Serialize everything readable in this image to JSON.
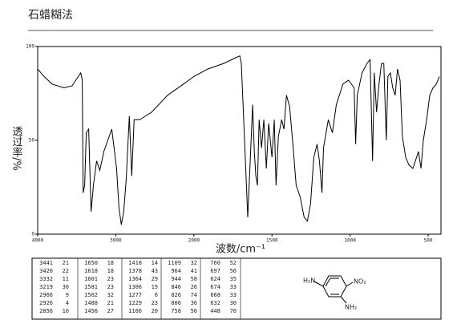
{
  "chart_data": {
    "type": "line",
    "title": "石蜡糊法",
    "x_label": "波数/cm⁻¹",
    "y_label": "透过率/%",
    "xlim": [
      4000,
      418
    ],
    "xticks": [
      4000,
      3000,
      2000,
      1500,
      1000,
      500
    ],
    "ylim": [
      0,
      100
    ],
    "yticks": [
      0,
      50,
      100
    ],
    "color": "#000000",
    "x": [
      4000,
      3918,
      3816,
      3663,
      3561,
      3480,
      3449,
      3429,
      3418,
      3398,
      3378,
      3347,
      3316,
      3286,
      3245,
      3204,
      3153,
      3051,
      2990,
      2959,
      2929,
      2898,
      2867,
      2827,
      2796,
      2765,
      2694,
      2541,
      2337,
      2133,
      2000,
      1912,
      1809,
      1732,
      1706,
      1696,
      1670,
      1655,
      1639,
      1624,
      1613,
      1603,
      1593,
      1582,
      1567,
      1552,
      1536,
      1521,
      1500,
      1485,
      1474,
      1459,
      1438,
      1423,
      1407,
      1387,
      1366,
      1345,
      1320,
      1294,
      1273,
      1253,
      1232,
      1211,
      1196,
      1180,
      1170,
      1139,
      1113,
      1088,
      1046,
      1010,
      974,
      964,
      954,
      923,
      892,
      872,
      856,
      845,
      830,
      815,
      799,
      784,
      768,
      758,
      742,
      727,
      711,
      696,
      680,
      665,
      644,
      624,
      598,
      582,
      562,
      546,
      531,
      510,
      490,
      469,
      448,
      428
    ],
    "values": [
      88,
      84,
      80,
      78,
      79,
      84,
      86,
      82,
      22,
      26,
      54,
      56,
      12,
      26,
      39,
      34,
      44,
      56,
      35,
      14,
      5,
      12,
      29,
      63,
      31,
      61,
      61,
      65,
      74,
      80,
      84,
      88,
      91,
      94,
      95,
      91,
      39,
      9,
      39,
      69,
      44,
      31,
      26,
      61,
      46,
      61,
      35,
      59,
      41,
      61,
      26,
      52,
      61,
      56,
      74,
      68,
      48,
      26,
      20,
      9,
      7,
      16,
      41,
      48,
      39,
      22,
      46,
      61,
      54,
      69,
      80,
      82,
      78,
      48,
      74,
      86,
      91,
      93,
      39,
      86,
      65,
      80,
      91,
      91,
      50,
      84,
      86,
      78,
      74,
      88,
      82,
      52,
      41,
      37,
      35,
      39,
      44,
      35,
      50,
      61,
      74,
      78,
      80,
      84
    ],
    "peak_table": [
      [
        [
          3441,
          21
        ],
        [
          3420,
          22
        ],
        [
          3332,
          11
        ],
        [
          3219,
          30
        ],
        [
          2966,
          9
        ],
        [
          2926,
          4
        ],
        [
          2856,
          10
        ]
      ],
      [
        [
          1650,
          18
        ],
        [
          1618,
          18
        ],
        [
          1601,
          23
        ],
        [
          1581,
          23
        ],
        [
          1502,
          32
        ],
        [
          1488,
          21
        ],
        [
          1456,
          27
        ]
      ],
      [
        [
          1418,
          14
        ],
        [
          1378,
          43
        ],
        [
          1364,
          29
        ],
        [
          1306,
          19
        ],
        [
          1277,
          6
        ],
        [
          1229,
          23
        ],
        [
          1166,
          20
        ]
      ],
      [
        [
          1109,
          32
        ],
        [
          964,
          41
        ],
        [
          944,
          58
        ],
        [
          846,
          26
        ],
        [
          826,
          74
        ],
        [
          806,
          36
        ],
        [
          758,
          50
        ]
      ],
      [
        [
          760,
          52
        ],
        [
          697,
          56
        ],
        [
          624,
          35
        ],
        [
          674,
          33
        ],
        [
          668,
          33
        ],
        [
          632,
          30
        ],
        [
          448,
          70
        ]
      ]
    ],
    "structure_labels": [
      "H₂N",
      "NO₂",
      "NH₂"
    ]
  }
}
